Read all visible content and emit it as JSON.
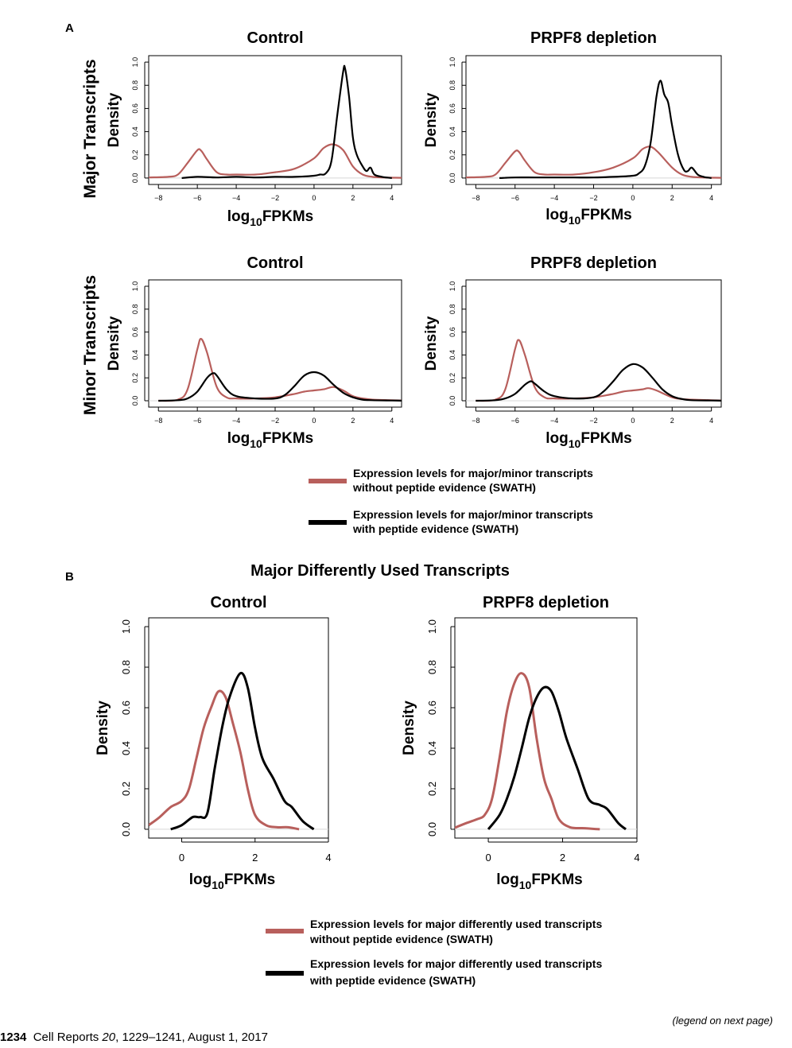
{
  "panel_labels": [
    "A",
    "B"
  ],
  "row_labels": [
    "Major Transcripts",
    "Minor Transcripts"
  ],
  "section_b_title": "Major Differently Used Transcripts",
  "legend_a": [
    {
      "color": "#b85f5c",
      "line1": "Expression levels for major/minor transcripts",
      "line2": "without peptide evidence (SWATH)"
    },
    {
      "color": "#000000",
      "line1": "Expression levels for major/minor transcripts",
      "line2": "with peptide evidence (SWATH)"
    }
  ],
  "legend_b": [
    {
      "color": "#b85f5c",
      "line1": "Expression levels for major differently used transcripts",
      "line2": "without peptide evidence (SWATH)"
    },
    {
      "color": "#000000",
      "line1": "Expression levels for major differently used transcripts",
      "line2": "with peptide evidence (SWATH)"
    }
  ],
  "footer": {
    "page": "1234",
    "journal": "Cell Reports",
    "volume": "20",
    "rest": ", 1229–1241, August 1, 2017"
  },
  "legend_note": "(legend on next page)",
  "chart_data": [
    {
      "type": "line",
      "title": "Control",
      "ylabel": "Density",
      "xlabel_main": "log",
      "xlabel_sub": "10",
      "xlabel_rest": "FPKMs",
      "xlim": [
        -8.5,
        4.5
      ],
      "ylim": [
        0,
        1.0
      ],
      "xticks": [
        -8,
        -6,
        -4,
        -2,
        0,
        2,
        4
      ],
      "yticks": [
        0.0,
        0.2,
        0.4,
        0.6,
        0.8,
        1.0
      ],
      "series": [
        {
          "color": "#b85f5c",
          "x": [
            -8.5,
            -7.5,
            -7,
            -6.5,
            -6,
            -5.8,
            -5.5,
            -5,
            -4.5,
            -4,
            -3,
            -2,
            -1,
            0,
            0.5,
            1,
            1.5,
            2,
            2.5,
            3,
            3.5,
            4,
            4.5
          ],
          "y": [
            0.005,
            0.01,
            0.03,
            0.13,
            0.24,
            0.235,
            0.16,
            0.05,
            0.03,
            0.03,
            0.03,
            0.05,
            0.08,
            0.17,
            0.26,
            0.29,
            0.24,
            0.1,
            0.03,
            0.01,
            0.005,
            0.003,
            0.002
          ]
        },
        {
          "color": "#000000",
          "x": [
            -6.8,
            -6,
            -5,
            -4,
            -3,
            -2,
            -1,
            0,
            0.3,
            0.6,
            0.9,
            1.2,
            1.5,
            1.6,
            1.8,
            2,
            2.2,
            2.5,
            2.7,
            2.9,
            3.1,
            3.5,
            4
          ],
          "y": [
            0.0,
            0.01,
            0.005,
            0.01,
            0.005,
            0.01,
            0.01,
            0.02,
            0.03,
            0.04,
            0.15,
            0.55,
            0.92,
            0.94,
            0.7,
            0.35,
            0.2,
            0.1,
            0.06,
            0.09,
            0.03,
            0.01,
            0.0
          ]
        }
      ]
    },
    {
      "type": "line",
      "title": "PRPF8 depletion",
      "ylabel": "Density",
      "xlabel_main": "log",
      "xlabel_sub": "10",
      "xlabel_rest": "FPKMs",
      "xlim": [
        -8.5,
        4.5
      ],
      "ylim": [
        0,
        1.0
      ],
      "xticks": [
        -8,
        -6,
        -4,
        -2,
        0,
        2,
        4
      ],
      "yticks": [
        0.0,
        0.2,
        0.4,
        0.6,
        0.8,
        1.0
      ],
      "series": [
        {
          "color": "#b85f5c",
          "x": [
            -8.5,
            -7.5,
            -7,
            -6.5,
            -6,
            -5.8,
            -5.5,
            -5,
            -4.5,
            -4,
            -3,
            -2,
            -1,
            0,
            0.5,
            0.9,
            1.3,
            2,
            2.5,
            3,
            3.5,
            4,
            4.5
          ],
          "y": [
            0.005,
            0.01,
            0.03,
            0.13,
            0.23,
            0.225,
            0.15,
            0.05,
            0.03,
            0.03,
            0.03,
            0.05,
            0.09,
            0.17,
            0.25,
            0.27,
            0.22,
            0.09,
            0.03,
            0.01,
            0.005,
            0.003,
            0.002
          ]
        },
        {
          "color": "#000000",
          "x": [
            -6.8,
            -6,
            -5,
            -4,
            -3,
            -2,
            -1,
            0,
            0.3,
            0.6,
            0.9,
            1.2,
            1.4,
            1.6,
            1.8,
            2,
            2.3,
            2.6,
            2.8,
            3,
            3.3,
            3.6,
            4
          ],
          "y": [
            0.0,
            0.005,
            0.005,
            0.005,
            0.005,
            0.005,
            0.01,
            0.02,
            0.04,
            0.1,
            0.3,
            0.7,
            0.84,
            0.72,
            0.65,
            0.45,
            0.2,
            0.07,
            0.06,
            0.09,
            0.03,
            0.01,
            0.0
          ]
        }
      ]
    },
    {
      "type": "line",
      "title": "Control",
      "ylabel": "Density",
      "xlabel_main": "log",
      "xlabel_sub": "10",
      "xlabel_rest": "FPKMs",
      "xlim": [
        -8.5,
        4.5
      ],
      "ylim": [
        0,
        1.0
      ],
      "xticks": [
        -8,
        -6,
        -4,
        -2,
        0,
        2,
        4
      ],
      "yticks": [
        0.0,
        0.2,
        0.4,
        0.6,
        0.8,
        1.0
      ],
      "series": [
        {
          "color": "#b85f5c",
          "x": [
            -8,
            -7,
            -6.5,
            -6,
            -5.8,
            -5.5,
            -5,
            -4.5,
            -4,
            -3,
            -2,
            -1,
            -0.5,
            0,
            0.5,
            1,
            1.5,
            2,
            2.5,
            3,
            4,
            4.5
          ],
          "y": [
            0.0,
            0.01,
            0.1,
            0.45,
            0.54,
            0.42,
            0.12,
            0.03,
            0.02,
            0.02,
            0.03,
            0.06,
            0.08,
            0.09,
            0.1,
            0.12,
            0.09,
            0.04,
            0.02,
            0.01,
            0.005,
            0.003
          ]
        },
        {
          "color": "#000000",
          "x": [
            -8,
            -7,
            -6.5,
            -6,
            -5.5,
            -5.2,
            -5,
            -4.5,
            -4,
            -3,
            -2,
            -1.5,
            -1,
            -0.5,
            0,
            0.5,
            1,
            1.5,
            2,
            2.5,
            3,
            4,
            4.5
          ],
          "y": [
            0.0,
            0.005,
            0.02,
            0.08,
            0.2,
            0.24,
            0.22,
            0.1,
            0.04,
            0.02,
            0.02,
            0.05,
            0.13,
            0.22,
            0.25,
            0.22,
            0.14,
            0.07,
            0.03,
            0.01,
            0.005,
            0.002,
            0.001
          ]
        }
      ]
    },
    {
      "type": "line",
      "title": "PRPF8 depletion",
      "ylabel": "Density",
      "xlabel_main": "log",
      "xlabel_sub": "10",
      "xlabel_rest": "FPKMs",
      "xlim": [
        -8.5,
        4.5
      ],
      "ylim": [
        0,
        1.0
      ],
      "xticks": [
        -8,
        -6,
        -4,
        -2,
        0,
        2,
        4
      ],
      "yticks": [
        0.0,
        0.2,
        0.4,
        0.6,
        0.8,
        1.0
      ],
      "series": [
        {
          "color": "#b85f5c",
          "x": [
            -8,
            -7,
            -6.5,
            -6,
            -5.8,
            -5.5,
            -5,
            -4.5,
            -4,
            -3,
            -2,
            -1,
            -0.5,
            0,
            0.5,
            0.8,
            1.2,
            2,
            2.5,
            3,
            4,
            4.5
          ],
          "y": [
            0.0,
            0.01,
            0.1,
            0.45,
            0.53,
            0.4,
            0.12,
            0.03,
            0.02,
            0.02,
            0.03,
            0.06,
            0.08,
            0.09,
            0.1,
            0.11,
            0.09,
            0.03,
            0.015,
            0.01,
            0.005,
            0.003
          ]
        },
        {
          "color": "#000000",
          "x": [
            -8,
            -7,
            -6.5,
            -6,
            -5.5,
            -5.2,
            -5,
            -4.5,
            -4,
            -3,
            -2,
            -1.5,
            -1,
            -0.5,
            0,
            0.5,
            1,
            1.5,
            2,
            2.5,
            3,
            4,
            4.5
          ],
          "y": [
            0.0,
            0.005,
            0.02,
            0.06,
            0.14,
            0.17,
            0.15,
            0.08,
            0.04,
            0.02,
            0.03,
            0.08,
            0.17,
            0.27,
            0.32,
            0.29,
            0.2,
            0.1,
            0.04,
            0.015,
            0.005,
            0.002,
            0.001
          ]
        }
      ]
    },
    {
      "type": "line",
      "title": "Control",
      "ylabel": "Density",
      "xlabel_main": "log",
      "xlabel_sub": "10",
      "xlabel_rest": "FPKMs",
      "xlim": [
        -0.9,
        4.0
      ],
      "ylim": [
        0,
        1.0
      ],
      "xticks": [
        0,
        2,
        4
      ],
      "yticks": [
        0.0,
        0.2,
        0.4,
        0.6,
        0.8,
        1.0
      ],
      "series": [
        {
          "color": "#b85f5c",
          "x": [
            -0.9,
            -0.6,
            -0.3,
            0,
            0.2,
            0.4,
            0.6,
            0.8,
            1.0,
            1.2,
            1.4,
            1.6,
            1.8,
            2.0,
            2.3,
            2.6,
            2.9,
            3.2
          ],
          "y": [
            0.02,
            0.06,
            0.11,
            0.14,
            0.2,
            0.35,
            0.5,
            0.6,
            0.68,
            0.65,
            0.52,
            0.38,
            0.2,
            0.07,
            0.02,
            0.01,
            0.01,
            0.0
          ]
        },
        {
          "color": "#000000",
          "x": [
            -0.3,
            0,
            0.3,
            0.5,
            0.7,
            0.9,
            1.1,
            1.3,
            1.6,
            1.8,
            2.0,
            2.2,
            2.5,
            2.8,
            3.0,
            3.3,
            3.6
          ],
          "y": [
            0.0,
            0.02,
            0.06,
            0.06,
            0.08,
            0.3,
            0.5,
            0.65,
            0.77,
            0.7,
            0.5,
            0.35,
            0.25,
            0.14,
            0.11,
            0.04,
            0.0
          ]
        }
      ]
    },
    {
      "type": "line",
      "title": "PRPF8 depletion",
      "ylabel": "Density",
      "xlabel_main": "log",
      "xlabel_sub": "10",
      "xlabel_rest": "FPKMs",
      "xlim": [
        -0.9,
        4.0
      ],
      "ylim": [
        0,
        1.0
      ],
      "xticks": [
        0,
        2,
        4
      ],
      "yticks": [
        0.0,
        0.2,
        0.4,
        0.6,
        0.8,
        1.0
      ],
      "series": [
        {
          "color": "#b85f5c",
          "x": [
            -1.0,
            -0.6,
            -0.3,
            -0.1,
            0.1,
            0.3,
            0.5,
            0.7,
            0.9,
            1.1,
            1.3,
            1.5,
            1.7,
            1.9,
            2.2,
            2.6,
            3.0
          ],
          "y": [
            0.0,
            0.03,
            0.05,
            0.07,
            0.15,
            0.35,
            0.58,
            0.72,
            0.77,
            0.7,
            0.45,
            0.25,
            0.15,
            0.05,
            0.01,
            0.005,
            0.0
          ]
        },
        {
          "color": "#000000",
          "x": [
            0.0,
            0.3,
            0.5,
            0.7,
            0.9,
            1.1,
            1.3,
            1.5,
            1.7,
            1.9,
            2.1,
            2.4,
            2.7,
            3.0,
            3.2,
            3.5,
            3.7
          ],
          "y": [
            0.0,
            0.07,
            0.15,
            0.26,
            0.4,
            0.55,
            0.65,
            0.7,
            0.68,
            0.58,
            0.45,
            0.3,
            0.15,
            0.12,
            0.1,
            0.03,
            0.0
          ]
        }
      ]
    }
  ]
}
